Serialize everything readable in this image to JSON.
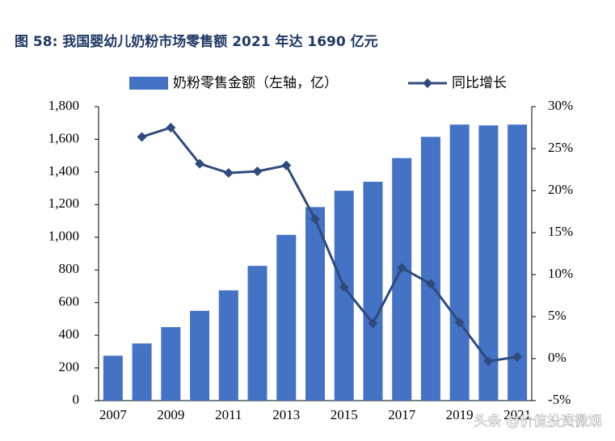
{
  "chart_data": {
    "type": "bar_line",
    "title": "图 58: 我国婴幼儿奶粉市场零售额 2021 年达 1690 亿元",
    "categories": [
      "2007",
      null,
      "2009",
      null,
      "2011",
      null,
      "2013",
      null,
      "2015",
      null,
      "2017",
      null,
      "2019",
      null,
      "2021"
    ],
    "series": [
      {
        "name": "奶粉零售金额（左轴，亿）",
        "color": "#4472c4",
        "type": "bar",
        "values": [
          275,
          350,
          450,
          550,
          675,
          825,
          1015,
          1185,
          1285,
          1340,
          1485,
          1615,
          1690,
          1685,
          1690
        ]
      },
      {
        "name": "同比增长",
        "color": "#2f4b7c",
        "type": "line",
        "axis": "y2",
        "values": [
          null,
          26.4,
          27.5,
          23.2,
          22.1,
          22.3,
          23.0,
          16.6,
          8.5,
          4.2,
          10.8,
          8.9,
          4.3,
          -0.3,
          0.2
        ]
      }
    ],
    "ylim": [
      0,
      1800
    ],
    "yticks": [
      0,
      200,
      400,
      600,
      800,
      {
        "value": 1000,
        "label": "1,000"
      },
      {
        "value": 1200,
        "label": "1,200"
      },
      {
        "value": 1400,
        "label": "1,400"
      },
      {
        "value": 1600,
        "label": "1,600"
      },
      {
        "value": 1800,
        "label": "1,800"
      }
    ],
    "y2lim": [
      -5,
      30
    ],
    "y2ticks": [
      {
        "value": -5,
        "label": "-5%"
      },
      {
        "value": 0,
        "label": "0%"
      },
      {
        "value": 5,
        "label": "5%"
      },
      {
        "value": 10,
        "label": "10%"
      },
      {
        "value": 15,
        "label": "15%"
      },
      {
        "value": 20,
        "label": "20%"
      },
      {
        "value": 25,
        "label": "25%"
      },
      {
        "value": 30,
        "label": "30%"
      }
    ],
    "legend": "top",
    "watermark": "头条 @价值投资微观"
  }
}
